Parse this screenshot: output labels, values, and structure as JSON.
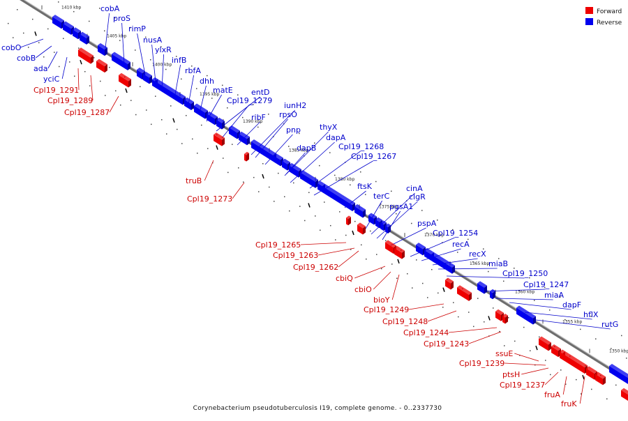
{
  "caption": "Corynebacterium pseudotuberculosis I19, complete genome. - 0..2337730",
  "legend": [
    {
      "label": "Forward",
      "color": "#ee0000"
    },
    {
      "label": "Reverse",
      "color": "#0000ee"
    }
  ],
  "colors": {
    "forward": "#ee0000",
    "reverse": "#0000ee",
    "backbone": "#888888"
  },
  "ticks": [
    "1410 kbp",
    "1405 kbp",
    "1400 kbp",
    "1395 kbp",
    "1390 kbp",
    "1385 kbp",
    "1380 kbp",
    "1375 kbp",
    "1370 kbp",
    "1365 kbp",
    "1360 kbp",
    "1355 kbp",
    "1350 kbp"
  ],
  "labels_reverse": [
    "cobA",
    "proS",
    "rimP",
    "nusA",
    "ylxR",
    "infB",
    "rbfA",
    "dhh",
    "matE",
    "entD",
    "Cpl19_1279",
    "ribF",
    "iunH2",
    "rpsO",
    "pnp",
    "thyX",
    "dapA",
    "dapB",
    "Cpl19_1268",
    "Cpl19_1267",
    "ftsK",
    "cinA",
    "terC",
    "clgR",
    "pgsA1",
    "pspA",
    "Cpl19_1254",
    "recA",
    "recX",
    "miaB",
    "Cpl19_1250",
    "Cpl19_1247",
    "miaA",
    "dapF",
    "hflX",
    "rutG",
    "cobO",
    "cobB",
    "ada",
    "yciC"
  ],
  "labels_forward": [
    "Cpl19_1291",
    "Cpl19_1289",
    "Cpl19_1287",
    "truB",
    "Cpl19_1273",
    "Cpl19_1265",
    "Cpl19_1263",
    "Cpl19_1262",
    "cbiQ",
    "cbiO",
    "bioY",
    "Cpl19_1249",
    "Cpl19_1248",
    "Cpl19_1244",
    "Cpl19_1243",
    "ssuE",
    "Cpl19_1239",
    "ptsH",
    "Cpl19_1237",
    "fruA",
    "fruK"
  ]
}
